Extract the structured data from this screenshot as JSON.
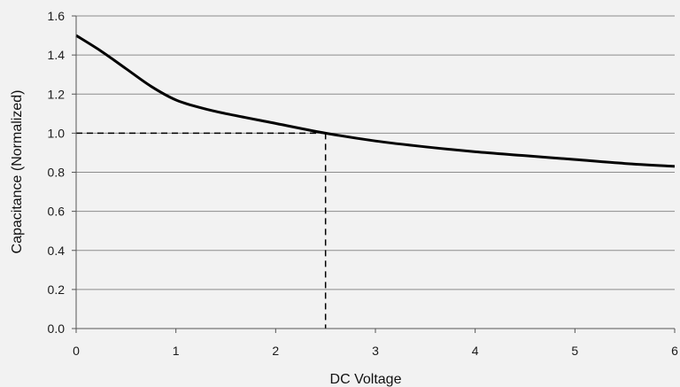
{
  "chart_data": {
    "type": "line",
    "title": "",
    "xlabel": "DC Voltage",
    "ylabel": "Capacitance (Normalized)",
    "xlim": [
      0,
      6
    ],
    "ylim": [
      0,
      1.6
    ],
    "x_ticks": [
      0,
      1,
      2,
      3,
      4,
      5,
      6
    ],
    "x_tick_labels": [
      "0",
      "1",
      "2",
      "3",
      "4",
      "5",
      "6"
    ],
    "y_ticks": [
      0,
      0.2,
      0.4,
      0.6,
      0.8,
      1.0,
      1.2,
      1.4,
      1.6
    ],
    "y_tick_labels": [
      "0.0",
      "0.2",
      "0.4",
      "0.6",
      "0.8",
      "1.0",
      "1.2",
      "1.4",
      "1.6"
    ],
    "grid": "horizontal",
    "legend": "none",
    "series": [
      {
        "x": [
          0,
          0.25,
          0.5,
          0.75,
          1.0,
          1.25,
          1.5,
          2.0,
          2.5,
          3.0,
          3.5,
          4.0,
          4.5,
          5.0,
          5.5,
          6.0
        ],
        "y": [
          1.5,
          1.42,
          1.33,
          1.24,
          1.17,
          1.13,
          1.1,
          1.05,
          1.0,
          0.96,
          0.93,
          0.905,
          0.885,
          0.865,
          0.845,
          0.83
        ]
      }
    ],
    "reference_point": {
      "x": 2.5,
      "y": 1.0
    },
    "colors": {
      "line": "#000000",
      "grid": "#8c8c8c",
      "background": "#f2f2f2"
    }
  }
}
